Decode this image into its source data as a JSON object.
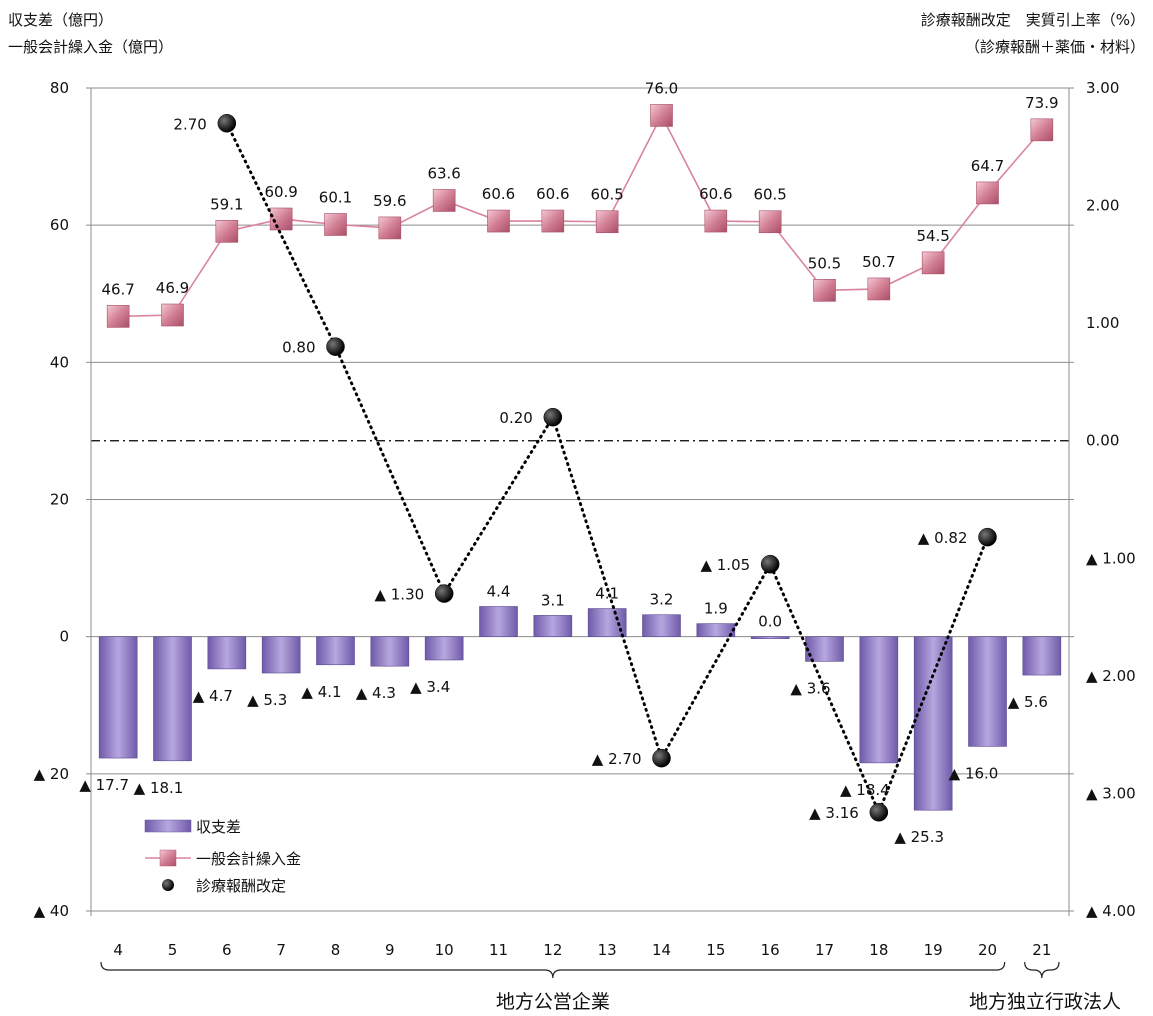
{
  "chart_data": {
    "type": "bar",
    "left_axis_title_1": "収支差（億円）",
    "left_axis_title_2": "一般会計繰入金（億円）",
    "right_axis_title_1": "診療報酬改定　実質引上率（%）",
    "right_axis_title_2": "（診療報酬＋薬価・材料）",
    "categories": [
      "4",
      "5",
      "6",
      "7",
      "8",
      "9",
      "10",
      "11",
      "12",
      "13",
      "14",
      "15",
      "16",
      "17",
      "18",
      "19",
      "20",
      "21"
    ],
    "left_axis": {
      "ylim": [
        -40,
        80
      ],
      "ticks": [
        80,
        60,
        40,
        20,
        0,
        -20,
        -40
      ],
      "tick_labels": [
        "80",
        "60",
        "40",
        "20",
        "0",
        "▲ 20",
        "▲ 40"
      ]
    },
    "right_axis": {
      "ylim": [
        -4.0,
        3.0
      ],
      "ticks": [
        3.0,
        2.0,
        1.0,
        0.0,
        -1.0,
        -2.0,
        -3.0,
        -4.0
      ],
      "tick_labels": [
        "3.00",
        "2.00",
        "1.00",
        "0.00",
        "▲ 1.00",
        "▲ 2.00",
        "▲ 3.00",
        "▲ 4.00"
      ]
    },
    "series": [
      {
        "name": "収支差",
        "kind": "bar",
        "axis": "left",
        "color": "#8e7cc3",
        "values": [
          -17.7,
          -18.1,
          -4.7,
          -5.3,
          -4.1,
          -4.3,
          -3.4,
          4.4,
          3.1,
          4.1,
          3.2,
          1.9,
          0.0,
          -3.6,
          -18.4,
          -25.3,
          -16.0,
          -5.6
        ],
        "labels": [
          "▲ 17.7",
          "▲ 18.1",
          "▲ 4.7",
          "▲ 5.3",
          "▲ 4.1",
          "▲ 4.3",
          "▲ 3.4",
          "4.4",
          "3.1",
          "4.1",
          "3.2",
          "1.9",
          "0.0",
          "▲ 3.6",
          "▲ 18.4",
          "▲ 25.3",
          "▲ 16.0",
          "▲ 5.6"
        ]
      },
      {
        "name": "一般会計繰入金",
        "kind": "line",
        "axis": "left",
        "color": "#d9849a",
        "values": [
          46.7,
          46.9,
          59.1,
          60.9,
          60.1,
          59.6,
          63.6,
          60.6,
          60.6,
          60.5,
          76.0,
          60.6,
          60.5,
          50.5,
          50.7,
          54.5,
          64.7,
          73.9
        ],
        "labels": [
          "46.7",
          "46.9",
          "59.1",
          "60.9",
          "60.1",
          "59.6",
          "63.6",
          "60.6",
          "60.6",
          "60.5",
          "76.0",
          "60.6",
          "60.5",
          "50.5",
          "50.7",
          "54.5",
          "64.7",
          "73.9"
        ]
      },
      {
        "name": "診療報酬改定",
        "kind": "dotted-line",
        "axis": "right",
        "color": "#000000",
        "points": [
          {
            "category": "6",
            "value": 2.7,
            "label": "2.70"
          },
          {
            "category": "8",
            "value": 0.8,
            "label": "0.80"
          },
          {
            "category": "10",
            "value": -1.3,
            "label": "▲ 1.30"
          },
          {
            "category": "12",
            "value": 0.2,
            "label": "0.20"
          },
          {
            "category": "14",
            "value": -2.7,
            "label": "▲ 2.70"
          },
          {
            "category": "16",
            "value": -1.05,
            "label": "▲ 1.05"
          },
          {
            "category": "18",
            "value": -3.16,
            "label": "▲ 3.16"
          },
          {
            "category": "20",
            "value": -0.82,
            "label": "▲ 0.82"
          }
        ]
      }
    ],
    "groups": [
      {
        "label": "地方公営企業",
        "from": "4",
        "to": "20"
      },
      {
        "label": "地方独立行政法人",
        "from": "21",
        "to": "21"
      }
    ],
    "grid": true,
    "legend_position": "bottom-left"
  }
}
